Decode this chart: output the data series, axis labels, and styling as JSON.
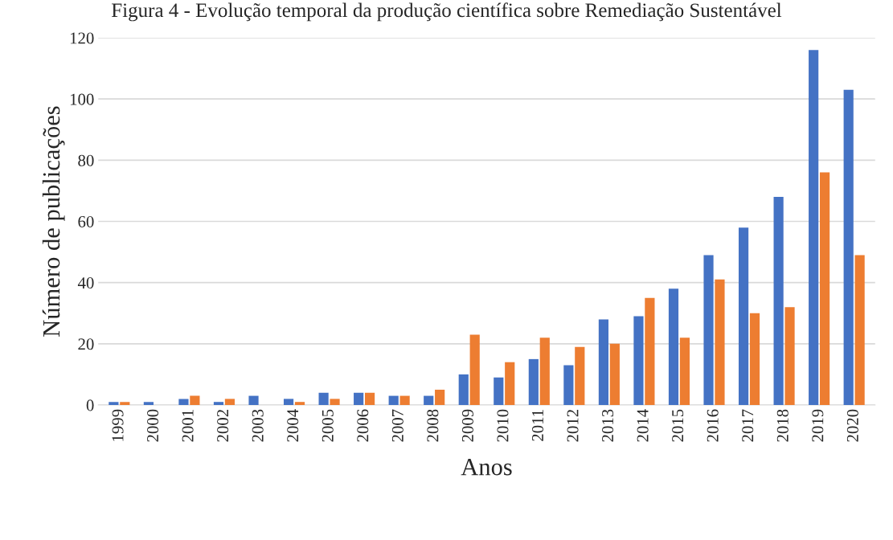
{
  "chart_data": {
    "type": "bar",
    "title": "Figura 4 - Evolução temporal da produção científica sobre Remediação Sustentável",
    "xlabel": "Anos",
    "ylabel": "Número de publicações",
    "categories": [
      "1999",
      "2000",
      "2001",
      "2002",
      "2003",
      "2004",
      "2005",
      "2006",
      "2007",
      "2008",
      "2009",
      "2010",
      "2011",
      "2012",
      "2013",
      "2014",
      "2015",
      "2016",
      "2017",
      "2018",
      "2019",
      "2020"
    ],
    "series": [
      {
        "color": "#4472c4",
        "values": [
          1,
          1,
          2,
          1,
          3,
          2,
          4,
          4,
          3,
          3,
          10,
          9,
          15,
          13,
          28,
          29,
          38,
          49,
          58,
          68,
          116,
          103
        ]
      },
      {
        "color": "#ed7d31",
        "values": [
          1,
          null,
          3,
          2,
          null,
          1,
          2,
          4,
          3,
          5,
          23,
          14,
          22,
          19,
          20,
          35,
          22,
          41,
          30,
          32,
          76,
          49
        ]
      }
    ],
    "ylim": [
      0,
      120
    ],
    "yticks": [
      0,
      20,
      40,
      60,
      80,
      100,
      120
    ],
    "grid": "y"
  }
}
